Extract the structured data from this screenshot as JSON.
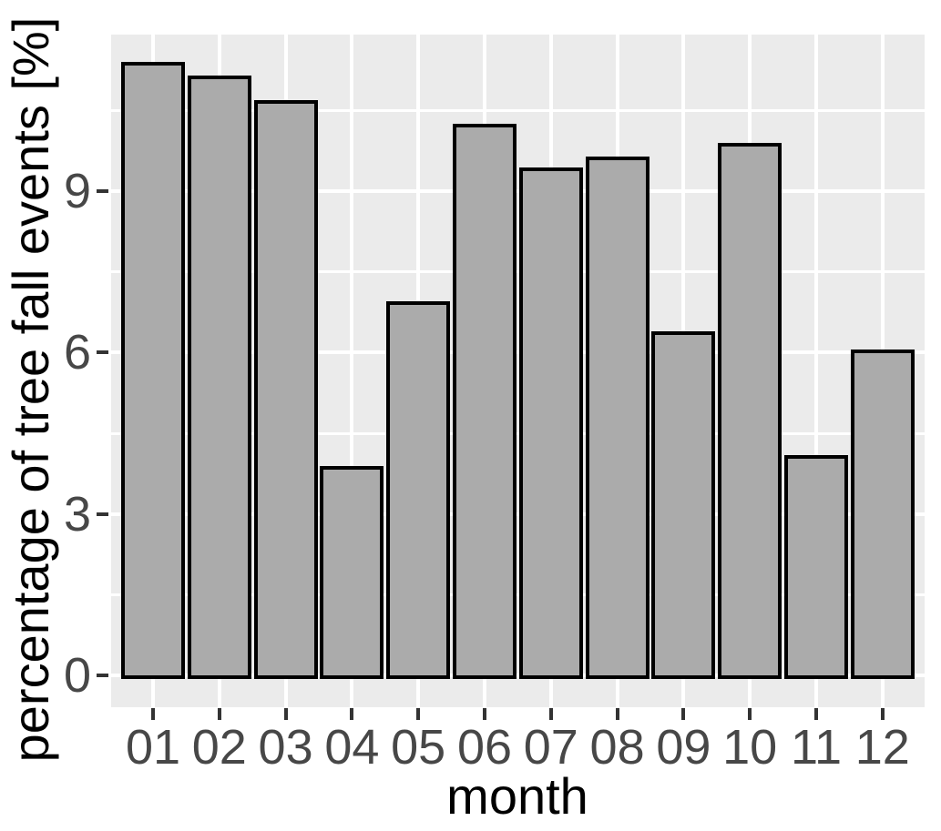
{
  "chart_data": {
    "type": "bar",
    "title": "",
    "xlabel": "month",
    "ylabel": "percentage of tree fall events [%]",
    "categories": [
      "01",
      "02",
      "03",
      "04",
      "05",
      "06",
      "07",
      "08",
      "09",
      "10",
      "11",
      "12"
    ],
    "values": [
      11.4,
      11.15,
      10.7,
      3.9,
      6.95,
      10.25,
      9.45,
      9.65,
      6.4,
      9.9,
      4.1,
      6.05
    ],
    "ylim": [
      0,
      11.9
    ],
    "yticks": [
      0,
      3,
      6,
      9
    ],
    "ytick_labels": [
      "0",
      "3",
      "6",
      "9"
    ],
    "minor_gridlines_y": [
      1.5,
      4.5,
      7.5,
      10.5
    ],
    "grid": "white horizontal major+minor lines and vertical major lines on gray panel",
    "legend": "none",
    "colors": {
      "bar_fill": "#ABABAB",
      "bar_stroke": "#000000",
      "panel_background": "#EBEBEB",
      "gridline": "#FFFFFF",
      "tick_label": "#474747",
      "axis_title": "#000000",
      "tick_mark": "#333333",
      "figure_background": "#FFFFFF"
    }
  }
}
